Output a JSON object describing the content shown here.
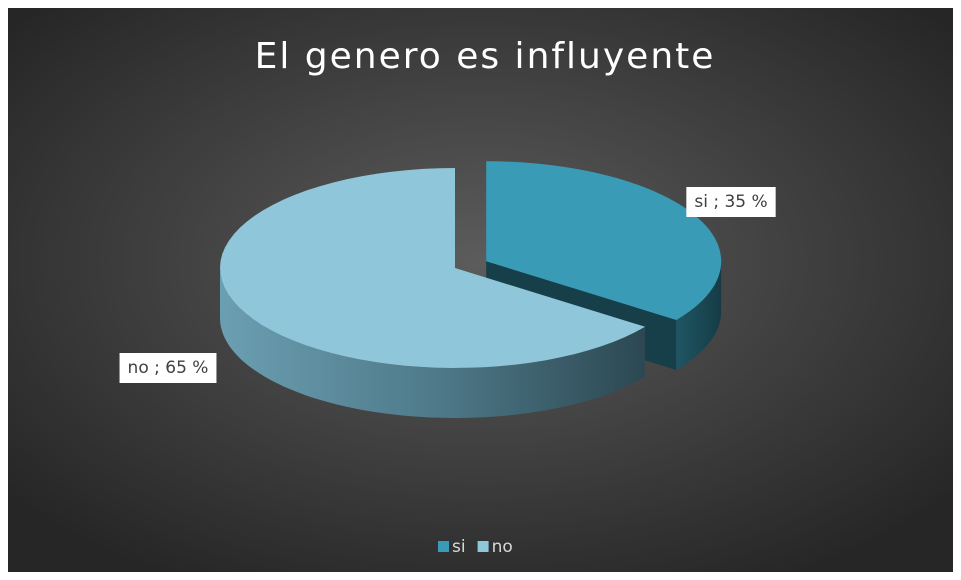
{
  "chart_data": {
    "type": "pie",
    "title": "El genero es influyente",
    "categories": [
      "si",
      "no"
    ],
    "values": [
      35,
      65
    ],
    "value_labels": [
      "si ; 35 %",
      "no ; 65 %"
    ],
    "colors": [
      "#3a9bb6",
      "#8fc6da"
    ],
    "legend": "bottom"
  }
}
